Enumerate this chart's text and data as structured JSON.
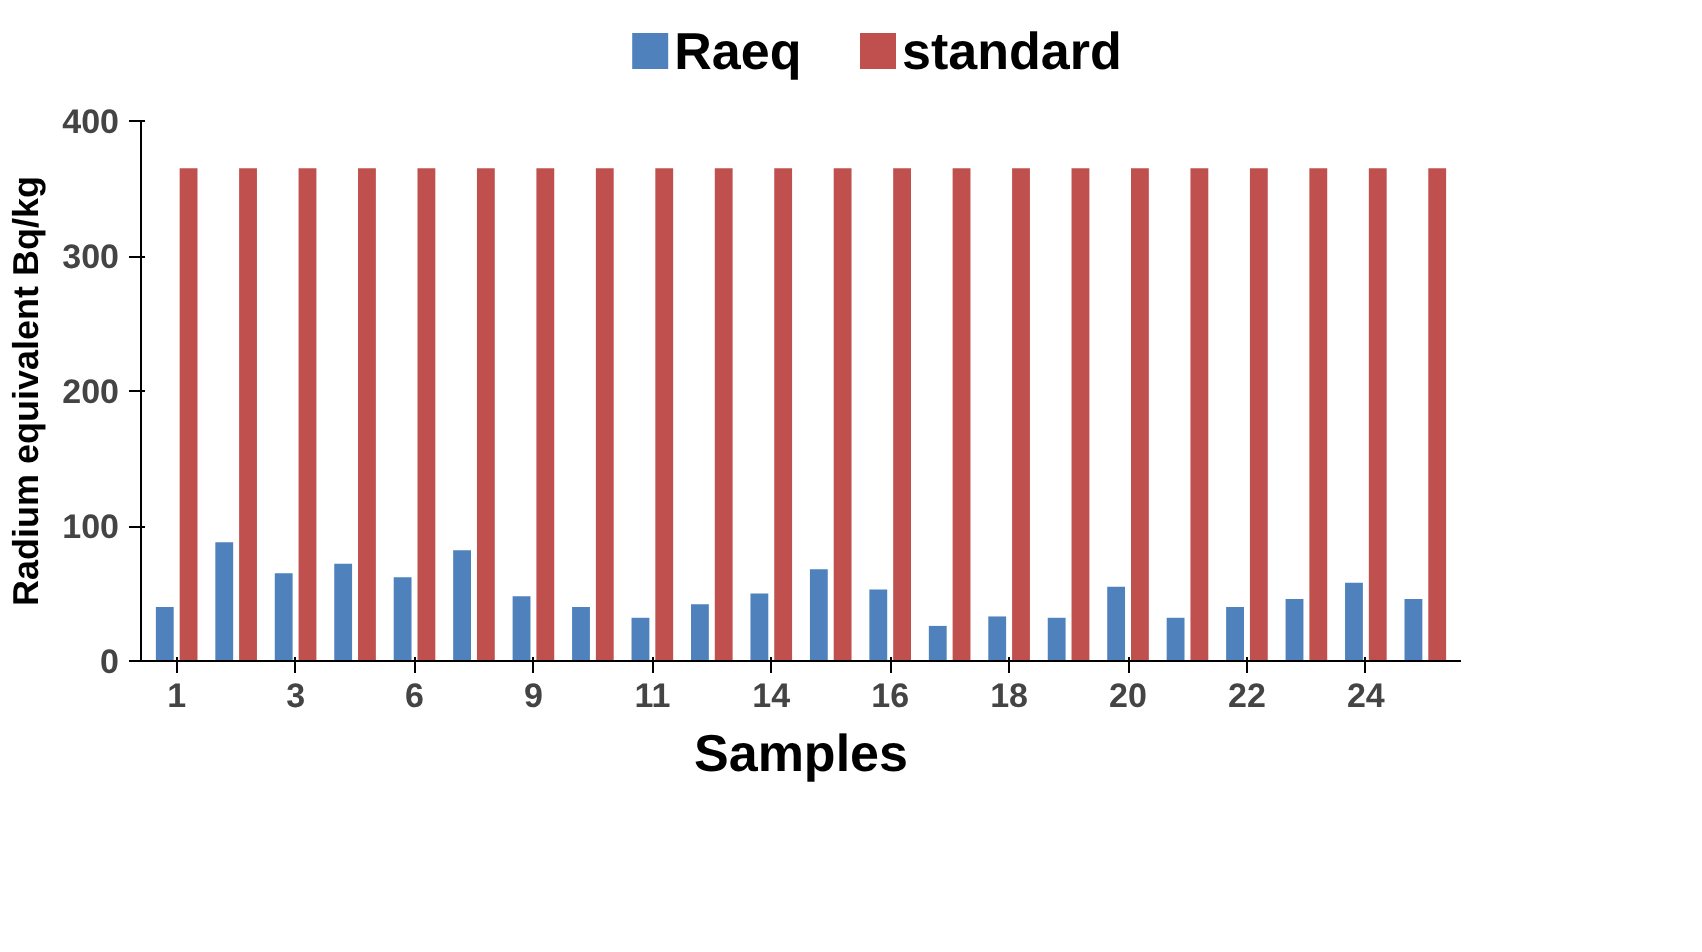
{
  "chart_data": {
    "type": "bar",
    "xlabel": "Samples",
    "ylabel": "Radium equivalent Bq/kg",
    "categories": [
      "1",
      null,
      "3",
      null,
      "6",
      null,
      "9",
      null,
      "11",
      null,
      "14",
      null,
      "16",
      null,
      "18",
      null,
      "20",
      null,
      "22",
      null,
      "24",
      null
    ],
    "series": [
      {
        "name": "Raeq",
        "color": "#4f81bd",
        "values": [
          40,
          88,
          65,
          72,
          62,
          82,
          48,
          40,
          32,
          42,
          50,
          68,
          53,
          26,
          33,
          32,
          55,
          32,
          40,
          46,
          58,
          46
        ]
      },
      {
        "name": "standard",
        "color": "#c0504d",
        "values": [
          365,
          365,
          365,
          365,
          365,
          365,
          365,
          365,
          365,
          365,
          365,
          365,
          365,
          365,
          365,
          365,
          365,
          365,
          365,
          365,
          365,
          365
        ]
      }
    ],
    "ylim": [
      0,
      400
    ],
    "yticks": [
      0,
      100,
      200,
      300,
      400
    ],
    "legend": "top"
  }
}
